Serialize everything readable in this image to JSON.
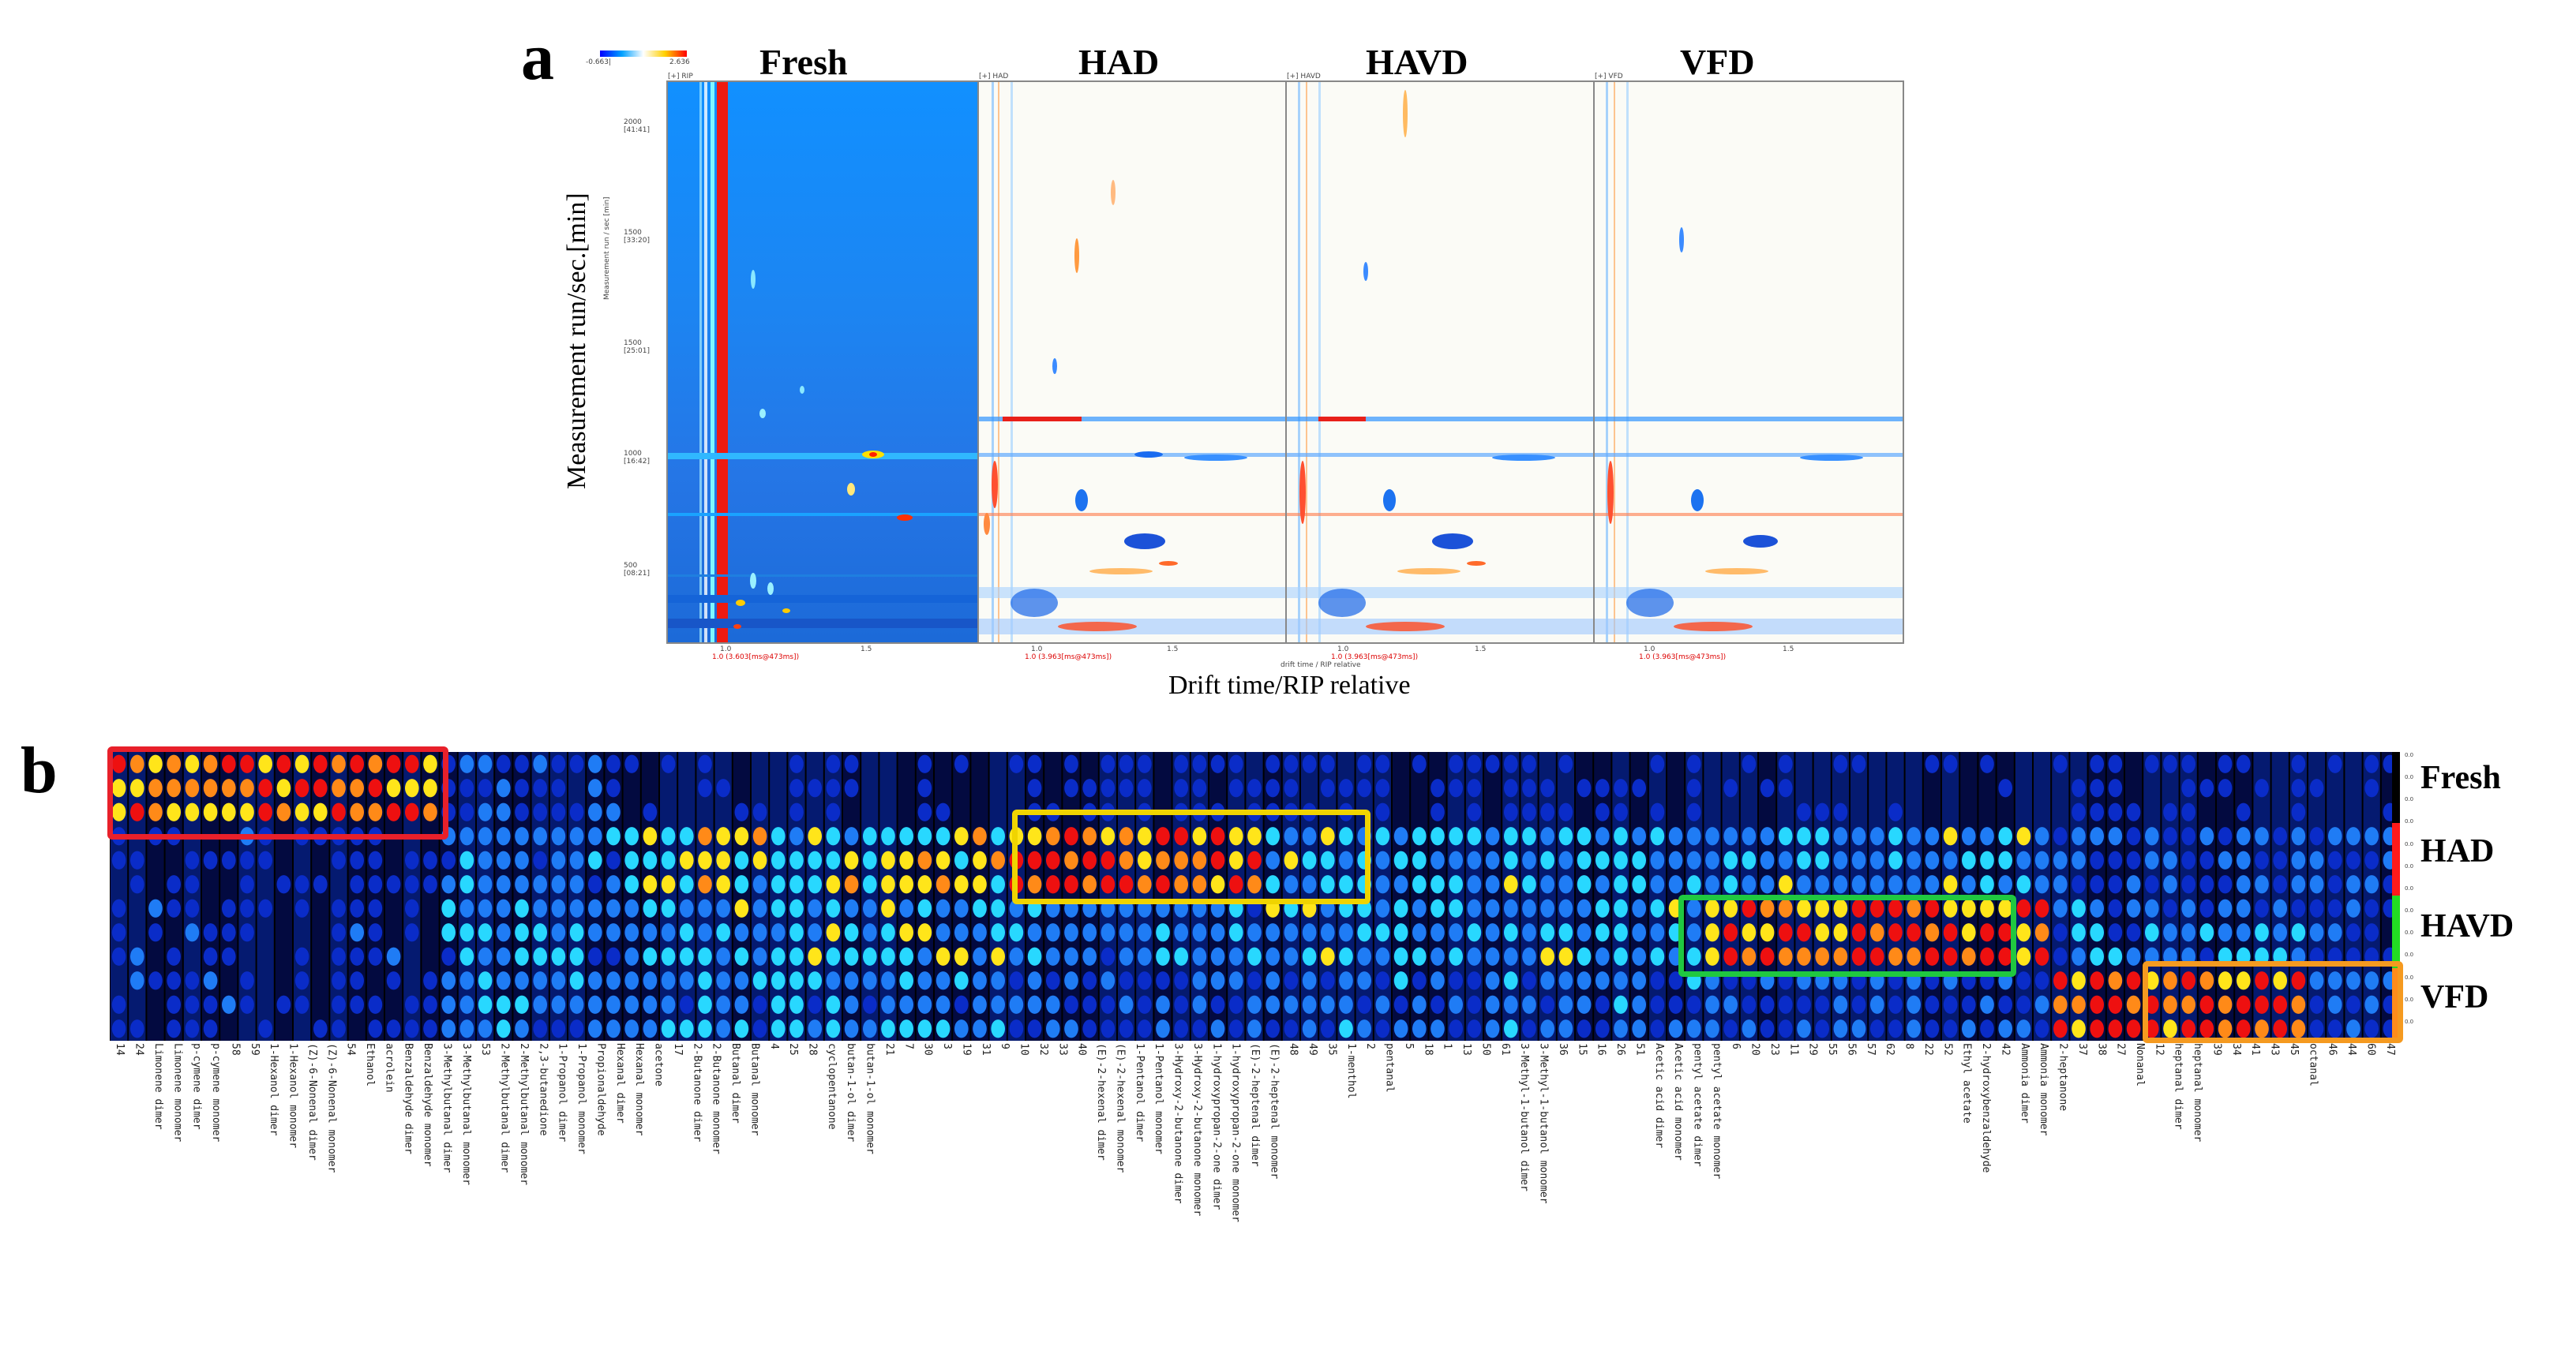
{
  "panel_a": {
    "letter": "a",
    "y_axis_label": "Measurement run/sec.[min]",
    "inner_y_axis_label": "Measurement run / sec [min]",
    "x_axis_label": "Drift time/RIP relative",
    "inner_x_axis_label": "drift time / RIP relative",
    "y_ticks": [
      "2000 [41:41]",
      "1500 [33:20]",
      "1500 [25:01]",
      "1000 [16:42]",
      "500 [08:21]"
    ],
    "x_ticks": [
      "1.0",
      "1.5"
    ],
    "colorbar_min": "-0.663|",
    "colorbar_max": "2.636",
    "spectra": [
      {
        "title": "Fresh",
        "tag": "[+] RIP",
        "footer": "1.0 (3.603[ms@473ms])"
      },
      {
        "title": "HAD",
        "tag": "[+] HAD",
        "footer": "1.0 (3.963[ms@473ms])"
      },
      {
        "title": "HAVD",
        "tag": "[+] HAVD",
        "footer": "1.0 (3.963[ms@473ms])"
      },
      {
        "title": "VFD",
        "tag": "[+] VFD",
        "footer": "1.0 (3.963[ms@473ms])"
      }
    ]
  },
  "panel_b": {
    "letter": "b",
    "rows": [
      "Fresh",
      "HAD",
      "HAVD",
      "VFD"
    ],
    "row_colors": [
      "#000000",
      "#ff1a1a",
      "#22dd22",
      "#ff8c1a"
    ],
    "highlight_colors": [
      "#e8202a",
      "#f0d400",
      "#20c840",
      "#f59a20"
    ],
    "compounds": [
      "14",
      "24",
      "Limonene dimer",
      "Limonene monomer",
      "p-cymene dimer",
      "p-cymene monomer",
      "58",
      "59",
      "1-Hexanol dimer",
      "1-Hexanol monomer",
      "(Z)-6-Nonenal dimer",
      "(Z)-6-Nonenal monomer",
      "54",
      "Ethanol",
      "acrolein",
      "Benzaldehyde dimer",
      "Benzaldehyde monomer",
      "3-Methylbutanal dimer",
      "3-Methylbutanal monomer",
      "53",
      "2-Methylbutanal dimer",
      "2-Methylbutanal monomer",
      "2,3-butanedione",
      "1-Propanol dimer",
      "1-Propanol monomer",
      "Propionaldehyde",
      "Hexanal dimer",
      "Hexanal monomer",
      "acetone",
      "17",
      "2-Butanone dimer",
      "2-Butanone monomer",
      "Butanal dimer",
      "Butanal monomer",
      "4",
      "25",
      "28",
      "cyclopentanone",
      "butan-1-ol dimer",
      "butan-1-ol monomer",
      "21",
      "7",
      "30",
      "3",
      "19",
      "31",
      "9",
      "10",
      "32",
      "33",
      "40",
      "(E)-2-hexenal dimer",
      "(E)-2-hexenal monomer",
      "1-Pentanol dimer",
      "1-Pentanol monomer",
      "3-Hydroxy-2-butanone dimer",
      "3-Hydroxy-2-butanone monomer",
      "1-hydroxypropan-2-one dimer",
      "1-hydroxypropan-2-one monomer",
      "(E)-2-heptenal dimer",
      "(E)-2-heptenal monomer",
      "48",
      "49",
      "35",
      "1-menthol",
      "2",
      "pentanal",
      "5",
      "18",
      "1",
      "13",
      "50",
      "61",
      "3-Methyl-1-butanol dimer",
      "3-Methyl-1-butanol monomer",
      "36",
      "15",
      "16",
      "26",
      "51",
      "Acetic acid dimer",
      "Acetic acid monomer",
      "pentyl acetate dimer",
      "pentyl acetate monomer",
      "6",
      "20",
      "23",
      "11",
      "29",
      "55",
      "56",
      "57",
      "62",
      "8",
      "22",
      "52",
      "Ethyl acetate",
      "2-hydroxybenzaldehyde",
      "42",
      "Ammonia dimer",
      "Ammonia monomer",
      "2-heptanone",
      "37",
      "38",
      "27",
      "Nonanal",
      "12",
      "heptanal dimer",
      "heptanal monomer",
      "39",
      "34",
      "41",
      "43",
      "45",
      "octanal",
      "46",
      "44",
      "60",
      "47"
    ],
    "tiny_scale": [
      "0.0",
      "0.0",
      "0.0",
      "0.0",
      "0.0",
      "0.0",
      "0.0",
      "0.0",
      "0.0",
      "0.0",
      "0.0",
      "0.0",
      "0.0"
    ]
  }
}
